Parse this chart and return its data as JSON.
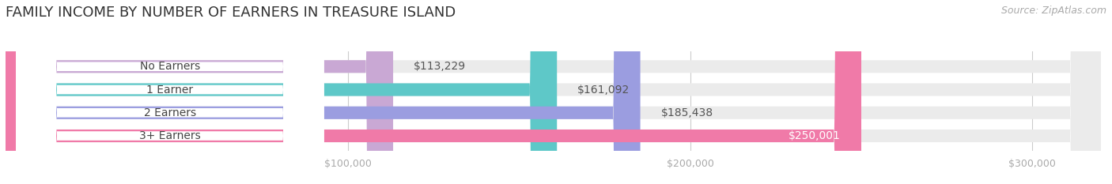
{
  "title": "FAMILY INCOME BY NUMBER OF EARNERS IN TREASURE ISLAND",
  "source": "Source: ZipAtlas.com",
  "categories": [
    "No Earners",
    "1 Earner",
    "2 Earners",
    "3+ Earners"
  ],
  "values": [
    113229,
    161092,
    185438,
    250001
  ],
  "labels": [
    "$113,229",
    "$161,092",
    "$185,438",
    "$250,001"
  ],
  "bar_colors": [
    "#c9a8d4",
    "#5ec8c8",
    "#9b9de0",
    "#f07aa8"
  ],
  "track_color": "#ebebeb",
  "background_color": "#ffffff",
  "xmax": 320000,
  "xticks": [
    100000,
    200000,
    300000
  ],
  "xticklabels": [
    "$100,000",
    "$200,000",
    "$300,000"
  ],
  "title_fontsize": 13,
  "source_fontsize": 9,
  "label_fontsize": 10,
  "tick_fontsize": 9,
  "bar_height": 0.55
}
